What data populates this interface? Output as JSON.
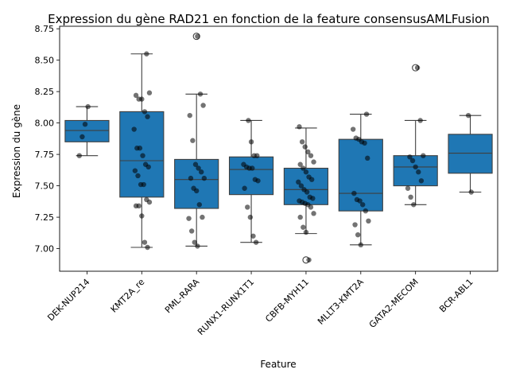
{
  "chart_data": {
    "type": "box",
    "title": "Expression du gène RAD21 en fonction de la feature consensusAMLFusion",
    "xlabel": "Feature",
    "ylabel": "Expression du gène",
    "ylim": [
      6.82,
      8.77
    ],
    "yticks": [
      7.0,
      7.25,
      7.5,
      7.75,
      8.0,
      8.25,
      8.5,
      8.75
    ],
    "ytick_labels": [
      "7.00",
      "7.25",
      "7.50",
      "7.75",
      "8.00",
      "8.25",
      "8.50",
      "8.75"
    ],
    "box_color": "#1f77b4",
    "point_color": "#000000",
    "categories": [
      "DEK-NUP214",
      "KMT2A_re",
      "PML-RARA",
      "RUNX1-RUNX1T1",
      "CBFB-MYH11",
      "MLLT3-KMT2A",
      "GATA2-MECOM",
      "BCR-ABL1"
    ],
    "boxes": [
      {
        "name": "DEK-NUP214",
        "whislo": 7.74,
        "q1": 7.85,
        "med": 7.94,
        "q3": 8.02,
        "whishi": 8.13,
        "fliers": []
      },
      {
        "name": "KMT2A_re",
        "whislo": 7.01,
        "q1": 7.41,
        "med": 7.7,
        "q3": 8.09,
        "whishi": 8.55,
        "fliers": []
      },
      {
        "name": "PML-RARA",
        "whislo": 7.02,
        "q1": 7.32,
        "med": 7.55,
        "q3": 7.71,
        "whishi": 8.23,
        "fliers": [
          8.69
        ]
      },
      {
        "name": "RUNX1-RUNX1T1",
        "whislo": 7.05,
        "q1": 7.43,
        "med": 7.63,
        "q3": 7.73,
        "whishi": 8.02,
        "fliers": []
      },
      {
        "name": "CBFB-MYH11",
        "whislo": 7.12,
        "q1": 7.35,
        "med": 7.47,
        "q3": 7.64,
        "whishi": 7.96,
        "fliers": [
          6.91
        ]
      },
      {
        "name": "MLLT3-KMT2A",
        "whislo": 7.03,
        "q1": 7.3,
        "med": 7.44,
        "q3": 7.87,
        "whishi": 8.07,
        "fliers": []
      },
      {
        "name": "GATA2-MECOM",
        "whislo": 7.35,
        "q1": 7.5,
        "med": 7.65,
        "q3": 7.74,
        "whishi": 8.02,
        "fliers": [
          8.44
        ]
      },
      {
        "name": "BCR-ABL1",
        "whislo": 7.45,
        "q1": 7.6,
        "med": 7.76,
        "q3": 7.91,
        "whishi": 8.06,
        "fliers": []
      }
    ],
    "points": [
      [
        7.74,
        7.89,
        7.99,
        8.13
      ],
      [
        8.55,
        8.24,
        8.22,
        8.19,
        8.19,
        8.09,
        8.05,
        7.95,
        7.8,
        7.8,
        7.74,
        7.67,
        7.65,
        7.62,
        7.58,
        7.51,
        7.51,
        7.39,
        7.37,
        7.34,
        7.34,
        7.26,
        7.05,
        7.01
      ],
      [
        8.69,
        8.23,
        8.14,
        8.06,
        7.86,
        7.67,
        7.64,
        7.61,
        7.56,
        7.56,
        7.48,
        7.46,
        7.35,
        7.25,
        7.24,
        7.14,
        7.05,
        7.02
      ],
      [
        8.02,
        7.85,
        7.74,
        7.74,
        7.67,
        7.65,
        7.64,
        7.64,
        7.55,
        7.54,
        7.48,
        7.33,
        7.25,
        7.1,
        7.05
      ],
      [
        7.97,
        7.85,
        7.81,
        7.77,
        7.74,
        7.69,
        7.67,
        7.64,
        7.61,
        7.57,
        7.55,
        7.53,
        7.5,
        7.47,
        7.45,
        7.41,
        7.4,
        7.38,
        7.37,
        7.36,
        7.35,
        7.33,
        7.28,
        7.25,
        7.17,
        7.13,
        6.91
      ],
      [
        8.07,
        7.95,
        7.88,
        7.87,
        7.85,
        7.84,
        7.72,
        7.44,
        7.39,
        7.38,
        7.35,
        7.3,
        7.22,
        7.19,
        7.11,
        7.03
      ],
      [
        8.44,
        8.02,
        7.74,
        7.73,
        7.7,
        7.65,
        7.61,
        7.54,
        7.48,
        7.41,
        7.35
      ],
      [
        8.06,
        7.45
      ]
    ]
  }
}
